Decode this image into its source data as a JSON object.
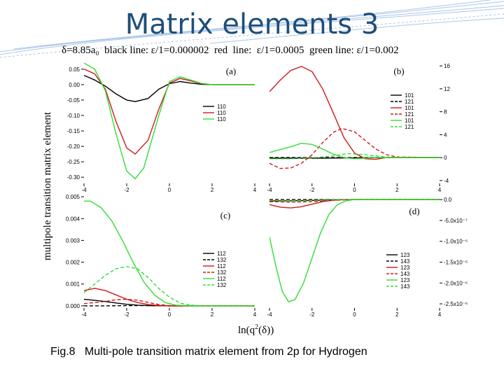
{
  "slide": {
    "title": "Matrix elements  3",
    "params": "δ=8.85a₀  black line: ε/1=0.000002  red  line:  ε/1=0.0005  green line: ε/1=0.002",
    "caption": "Fig.8   Multi-pole transition matrix element from 2p for Hydrogen",
    "ylabel": "multipole transition matrix element",
    "xlabel_main": "ln(q",
    "xlabel_sup": "2",
    "xlabel_tail": "(δ))"
  },
  "colors": {
    "black": "#000000",
    "red": "#d01818",
    "green": "#33dd33",
    "title": "#1f4e79",
    "deco": "#a9c6e8"
  },
  "chart_data": [
    {
      "type": "line",
      "panel_label": "(a)",
      "xlim": [
        -4,
        4
      ],
      "ylim": [
        -0.32,
        0.07
      ],
      "x_ticks": [
        "-4",
        "-2",
        "0",
        "2",
        "4"
      ],
      "y_ticks": [
        "0.05",
        "0.00",
        "-0.05",
        "-0.10",
        "-0.15",
        "-0.20",
        "-0.25",
        "-0.30"
      ],
      "legend_position": "center-right",
      "series": [
        {
          "name": "110",
          "color": "black",
          "dash": false,
          "points": [
            [
              -4,
              0.03
            ],
            [
              -3.5,
              0.015
            ],
            [
              -3,
              -0.005
            ],
            [
              -2.5,
              -0.03
            ],
            [
              -2,
              -0.05
            ],
            [
              -1.6,
              -0.055
            ],
            [
              -1,
              -0.045
            ],
            [
              -0.5,
              -0.015
            ],
            [
              0,
              0.003
            ],
            [
              0.5,
              0.01
            ],
            [
              1,
              0.005
            ],
            [
              1.5,
              0.001
            ],
            [
              2,
              0.0
            ],
            [
              4,
              0.0
            ]
          ]
        },
        {
          "name": "110",
          "color": "red",
          "dash": false,
          "points": [
            [
              -4,
              0.05
            ],
            [
              -3.5,
              0.035
            ],
            [
              -3,
              -0.015
            ],
            [
              -2.5,
              -0.12
            ],
            [
              -2,
              -0.205
            ],
            [
              -1.6,
              -0.225
            ],
            [
              -1,
              -0.18
            ],
            [
              -0.5,
              -0.08
            ],
            [
              0,
              0.005
            ],
            [
              0.5,
              0.02
            ],
            [
              1,
              0.012
            ],
            [
              1.5,
              0.003
            ],
            [
              2,
              0.0
            ],
            [
              4,
              0.0
            ]
          ]
        },
        {
          "name": "110",
          "color": "green",
          "dash": false,
          "points": [
            [
              -4,
              0.07
            ],
            [
              -3.5,
              0.05
            ],
            [
              -3,
              -0.02
            ],
            [
              -2.5,
              -0.16
            ],
            [
              -2,
              -0.28
            ],
            [
              -1.6,
              -0.305
            ],
            [
              -1.2,
              -0.27
            ],
            [
              -0.5,
              -0.1
            ],
            [
              0,
              0.01
            ],
            [
              0.5,
              0.025
            ],
            [
              1,
              0.015
            ],
            [
              1.5,
              0.004
            ],
            [
              2,
              0.0
            ],
            [
              4,
              0.0
            ]
          ]
        }
      ]
    },
    {
      "type": "line",
      "panel_label": "(b)",
      "xlim": [
        -4,
        4
      ],
      "ylim": [
        -4.5,
        16.5
      ],
      "x_ticks": [
        "-4",
        "-2",
        "0",
        "2",
        "4"
      ],
      "y_ticks": [
        "16",
        "12",
        "8",
        "4",
        "0",
        "-4"
      ],
      "legend_position": "center-right",
      "series": [
        {
          "name": "101",
          "color": "black",
          "dash": false,
          "points": [
            [
              -4,
              -0.1
            ],
            [
              -2,
              -0.1
            ],
            [
              0,
              -0.05
            ],
            [
              2,
              0.0
            ],
            [
              4,
              0.0
            ]
          ]
        },
        {
          "name": "121",
          "color": "black",
          "dash": true,
          "points": [
            [
              -4,
              0.0
            ],
            [
              -2,
              0.0
            ],
            [
              0,
              0.0
            ],
            [
              2,
              0.0
            ],
            [
              4,
              0.0
            ]
          ]
        },
        {
          "name": "101",
          "color": "red",
          "dash": false,
          "points": [
            [
              -4,
              11.5
            ],
            [
              -3.5,
              13.5
            ],
            [
              -3,
              15.2
            ],
            [
              -2.5,
              15.9
            ],
            [
              -2,
              15.0
            ],
            [
              -1.5,
              12.0
            ],
            [
              -1,
              7.8
            ],
            [
              -0.5,
              3.5
            ],
            [
              0,
              0.8
            ],
            [
              0.5,
              -0.2
            ],
            [
              1,
              -0.3
            ],
            [
              1.5,
              0.0
            ],
            [
              4,
              0.0
            ]
          ]
        },
        {
          "name": "121",
          "color": "red",
          "dash": true,
          "points": [
            [
              -4,
              -1.0
            ],
            [
              -3.5,
              -1.9
            ],
            [
              -3,
              -1.8
            ],
            [
              -2.5,
              -1.0
            ],
            [
              -2,
              0.5
            ],
            [
              -1.5,
              2.6
            ],
            [
              -1,
              4.4
            ],
            [
              -0.6,
              5.1
            ],
            [
              0,
              4.5
            ],
            [
              0.5,
              3.0
            ],
            [
              1,
              1.5
            ],
            [
              1.5,
              0.5
            ],
            [
              2,
              0.1
            ],
            [
              4,
              0.0
            ]
          ]
        },
        {
          "name": "101",
          "color": "green",
          "dash": false,
          "points": [
            [
              -4,
              0.9
            ],
            [
              -3.5,
              1.4
            ],
            [
              -3,
              1.9
            ],
            [
              -2.5,
              2.5
            ],
            [
              -2,
              2.3
            ],
            [
              -1.5,
              1.5
            ],
            [
              -1,
              0.6
            ],
            [
              -0.5,
              0.0
            ],
            [
              0,
              -0.2
            ],
            [
              0.5,
              -0.1
            ],
            [
              1,
              0.0
            ],
            [
              4,
              0.0
            ]
          ]
        },
        {
          "name": "121",
          "color": "green",
          "dash": true,
          "points": [
            [
              -4,
              -0.2
            ],
            [
              -3,
              -0.2
            ],
            [
              -2,
              -0.05
            ],
            [
              -1,
              0.3
            ],
            [
              -0.3,
              0.7
            ],
            [
              0.5,
              0.5
            ],
            [
              1,
              0.3
            ],
            [
              1.5,
              0.1
            ],
            [
              2,
              0.0
            ],
            [
              4,
              0.0
            ]
          ]
        }
      ]
    },
    {
      "type": "line",
      "panel_label": "(c)",
      "xlim": [
        -4,
        4
      ],
      "ylim": [
        -0.0001,
        0.0051
      ],
      "x_ticks": [
        "-4",
        "-2",
        "0",
        "2",
        "4"
      ],
      "y_ticks": [
        "0.005",
        "0.004",
        "0.003",
        "0.002",
        "0.001",
        "0.000"
      ],
      "legend_position": "center-right",
      "series": [
        {
          "name": "112",
          "color": "black",
          "dash": false,
          "points": [
            [
              -4,
              0.0003
            ],
            [
              -3.5,
              0.00025
            ],
            [
              -3,
              0.0002
            ],
            [
              -2.5,
              0.00013
            ],
            [
              -2,
              7e-05
            ],
            [
              -1.5,
              3e-05
            ],
            [
              -1,
              1e-05
            ],
            [
              0,
              0.0
            ],
            [
              4,
              0.0
            ]
          ]
        },
        {
          "name": "132",
          "color": "black",
          "dash": true,
          "points": [
            [
              -4,
              0.0
            ],
            [
              -3,
              0.0
            ],
            [
              -2,
              1e-05
            ],
            [
              -1,
              1e-05
            ],
            [
              0,
              0.0
            ],
            [
              4,
              0.0
            ]
          ]
        },
        {
          "name": "112",
          "color": "red",
          "dash": false,
          "points": [
            [
              -4,
              0.0007
            ],
            [
              -3.5,
              0.0008
            ],
            [
              -3,
              0.0007
            ],
            [
              -2.5,
              0.0005
            ],
            [
              -2,
              0.0003
            ],
            [
              -1.5,
              0.00015
            ],
            [
              -1,
              6e-05
            ],
            [
              -0.5,
              2e-05
            ],
            [
              0,
              0.0
            ],
            [
              4,
              0.0
            ]
          ]
        },
        {
          "name": "132",
          "color": "red",
          "dash": true,
          "points": [
            [
              -4,
              0.0001
            ],
            [
              -3.5,
              0.00015
            ],
            [
              -3,
              0.0002
            ],
            [
              -2.5,
              0.00028
            ],
            [
              -2,
              0.0003
            ],
            [
              -1.5,
              0.00026
            ],
            [
              -1,
              0.00016
            ],
            [
              -0.5,
              6e-05
            ],
            [
              0,
              1e-05
            ],
            [
              4,
              0.0
            ]
          ]
        },
        {
          "name": "112",
          "color": "green",
          "dash": false,
          "points": [
            [
              -4,
              0.0048
            ],
            [
              -3.7,
              0.0048
            ],
            [
              -3.2,
              0.0045
            ],
            [
              -2.7,
              0.0039
            ],
            [
              -2.2,
              0.003
            ],
            [
              -1.7,
              0.002
            ],
            [
              -1.2,
              0.0011
            ],
            [
              -0.7,
              0.0005
            ],
            [
              -0.2,
              0.00015
            ],
            [
              0.3,
              3e-05
            ],
            [
              1,
              0.0
            ],
            [
              4,
              0.0
            ]
          ]
        },
        {
          "name": "132",
          "color": "green",
          "dash": true,
          "points": [
            [
              -4,
              0.0006
            ],
            [
              -3.5,
              0.001
            ],
            [
              -3,
              0.0014
            ],
            [
              -2.5,
              0.0017
            ],
            [
              -2,
              0.0018
            ],
            [
              -1.5,
              0.0017
            ],
            [
              -1,
              0.0013
            ],
            [
              -0.5,
              0.0008
            ],
            [
              0,
              0.0004
            ],
            [
              0.5,
              0.00012
            ],
            [
              1,
              3e-05
            ],
            [
              1.5,
              0.0
            ],
            [
              4,
              0.0
            ]
          ]
        }
      ]
    },
    {
      "type": "line",
      "panel_label": "(d)",
      "xlim": [
        -4,
        4
      ],
      "ylim": [
        -26,
        1.2
      ],
      "y_unit_note": "×10^-7",
      "x_ticks": [
        "-4",
        "-2",
        "0",
        "2",
        "4"
      ],
      "y_ticks": [
        "0.0",
        "-5.0x10⁻⁷",
        "-1.0x10⁻⁶",
        "-1.5x10⁻⁶",
        "-2.0x10⁻⁶",
        "-2.5x10⁻⁶"
      ],
      "y_tick_values": [
        0,
        -5,
        -10,
        -15,
        -20,
        -25
      ],
      "legend_position": "center-right",
      "series": [
        {
          "name": "123",
          "color": "black",
          "dash": false,
          "points": [
            [
              -4,
              -0.3
            ],
            [
              -3,
              -0.3
            ],
            [
              -2,
              -0.2
            ],
            [
              -1,
              -0.05
            ],
            [
              0,
              0.0
            ],
            [
              4,
              0.0
            ]
          ]
        },
        {
          "name": "143",
          "color": "black",
          "dash": true,
          "points": [
            [
              -4,
              0.0
            ],
            [
              -2,
              0.0
            ],
            [
              0,
              0.0
            ],
            [
              4,
              0.0
            ]
          ]
        },
        {
          "name": "123",
          "color": "red",
          "dash": false,
          "points": [
            [
              -4,
              -1.2
            ],
            [
              -3.5,
              -1.8
            ],
            [
              -3,
              -2.0
            ],
            [
              -2.5,
              -1.7
            ],
            [
              -2,
              -1.1
            ],
            [
              -1.5,
              -0.5
            ],
            [
              -1,
              -0.15
            ],
            [
              -0.5,
              0.0
            ],
            [
              4,
              0.0
            ]
          ]
        },
        {
          "name": "143",
          "color": "red",
          "dash": true,
          "points": [
            [
              -4,
              -0.5
            ],
            [
              -3,
              -0.6
            ],
            [
              -2,
              -0.5
            ],
            [
              -1,
              -0.2
            ],
            [
              0,
              0.0
            ],
            [
              4,
              0.0
            ]
          ]
        },
        {
          "name": "123",
          "color": "green",
          "dash": false,
          "points": [
            [
              -4,
              -9.0
            ],
            [
              -3.7,
              -16.0
            ],
            [
              -3.4,
              -22.0
            ],
            [
              -3.1,
              -24.5
            ],
            [
              -2.8,
              -24.0
            ],
            [
              -2.4,
              -20.0
            ],
            [
              -2,
              -14.0
            ],
            [
              -1.6,
              -8.0
            ],
            [
              -1.2,
              -3.5
            ],
            [
              -0.8,
              -1.2
            ],
            [
              -0.4,
              -0.3
            ],
            [
              0,
              0.0
            ],
            [
              4,
              0.0
            ]
          ]
        },
        {
          "name": "143",
          "color": "green",
          "dash": true,
          "points": [
            [
              -4,
              -0.2
            ],
            [
              -3,
              -0.3
            ],
            [
              -2,
              -0.2
            ],
            [
              -1,
              -0.05
            ],
            [
              0,
              0.0
            ],
            [
              4,
              0.0
            ]
          ]
        }
      ]
    }
  ]
}
